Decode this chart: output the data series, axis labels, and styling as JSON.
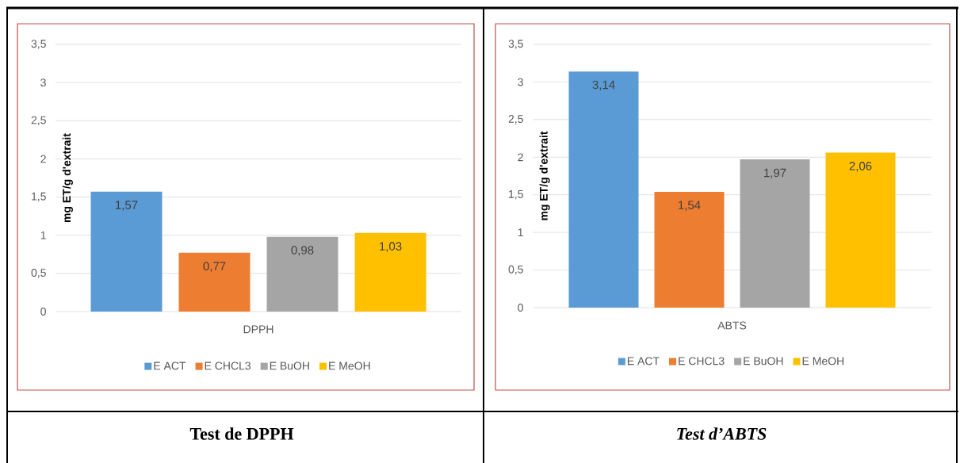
{
  "chart_data": [
    {
      "type": "bar",
      "categories": [
        "DPPH"
      ],
      "ylabel": "mg ET/g d'extrait",
      "ylim": [
        0,
        3.5
      ],
      "yticks": [
        0,
        {
          "value": 0.5,
          "label": "0,5"
        },
        1,
        {
          "value": 1.5,
          "label": "1,5"
        },
        2,
        {
          "value": 2.5,
          "label": "2,5"
        },
        3,
        {
          "value": 3.5,
          "label": "3,5"
        }
      ],
      "grid": "y",
      "legend": "bottom",
      "series": [
        {
          "name": "E ACT",
          "color": "#5b9bd5",
          "values": [
            1.57
          ],
          "value_labels": [
            "1,57"
          ]
        },
        {
          "name": "E CHCL3",
          "color": "#ed7d31",
          "values": [
            0.77
          ],
          "value_labels": [
            "0,77"
          ]
        },
        {
          "name": "E BuOH",
          "color": "#a5a5a5",
          "values": [
            0.98
          ],
          "value_labels": [
            "0,98"
          ]
        },
        {
          "name": "E MeOH",
          "color": "#ffc000",
          "values": [
            1.03
          ],
          "value_labels": [
            "1,03"
          ]
        }
      ],
      "annotations": [
        "Test de DPPH"
      ]
    },
    {
      "type": "bar",
      "categories": [
        "ABTS"
      ],
      "ylabel": "mg ET/g d'extrait",
      "ylim": [
        0,
        3.5
      ],
      "yticks": [
        0,
        {
          "value": 0.5,
          "label": "0,5"
        },
        1,
        {
          "value": 1.5,
          "label": "1,5"
        },
        2,
        {
          "value": 2.5,
          "label": "2,5"
        },
        3,
        {
          "value": 3.5,
          "label": "3,5"
        }
      ],
      "grid": "y",
      "legend": "bottom",
      "series": [
        {
          "name": "E ACT",
          "color": "#5b9bd5",
          "values": [
            3.14
          ],
          "value_labels": [
            "3,14"
          ]
        },
        {
          "name": "E CHCL3",
          "color": "#ed7d31",
          "values": [
            1.54
          ],
          "value_labels": [
            "1,54"
          ]
        },
        {
          "name": "E BuOH",
          "color": "#a5a5a5",
          "values": [
            1.97
          ],
          "value_labels": [
            "1,97"
          ]
        },
        {
          "name": "E MeOH",
          "color": "#ffc000",
          "values": [
            2.06
          ],
          "value_labels": [
            "2,06"
          ]
        }
      ],
      "annotations": [
        "Test d’ABTS"
      ]
    }
  ]
}
